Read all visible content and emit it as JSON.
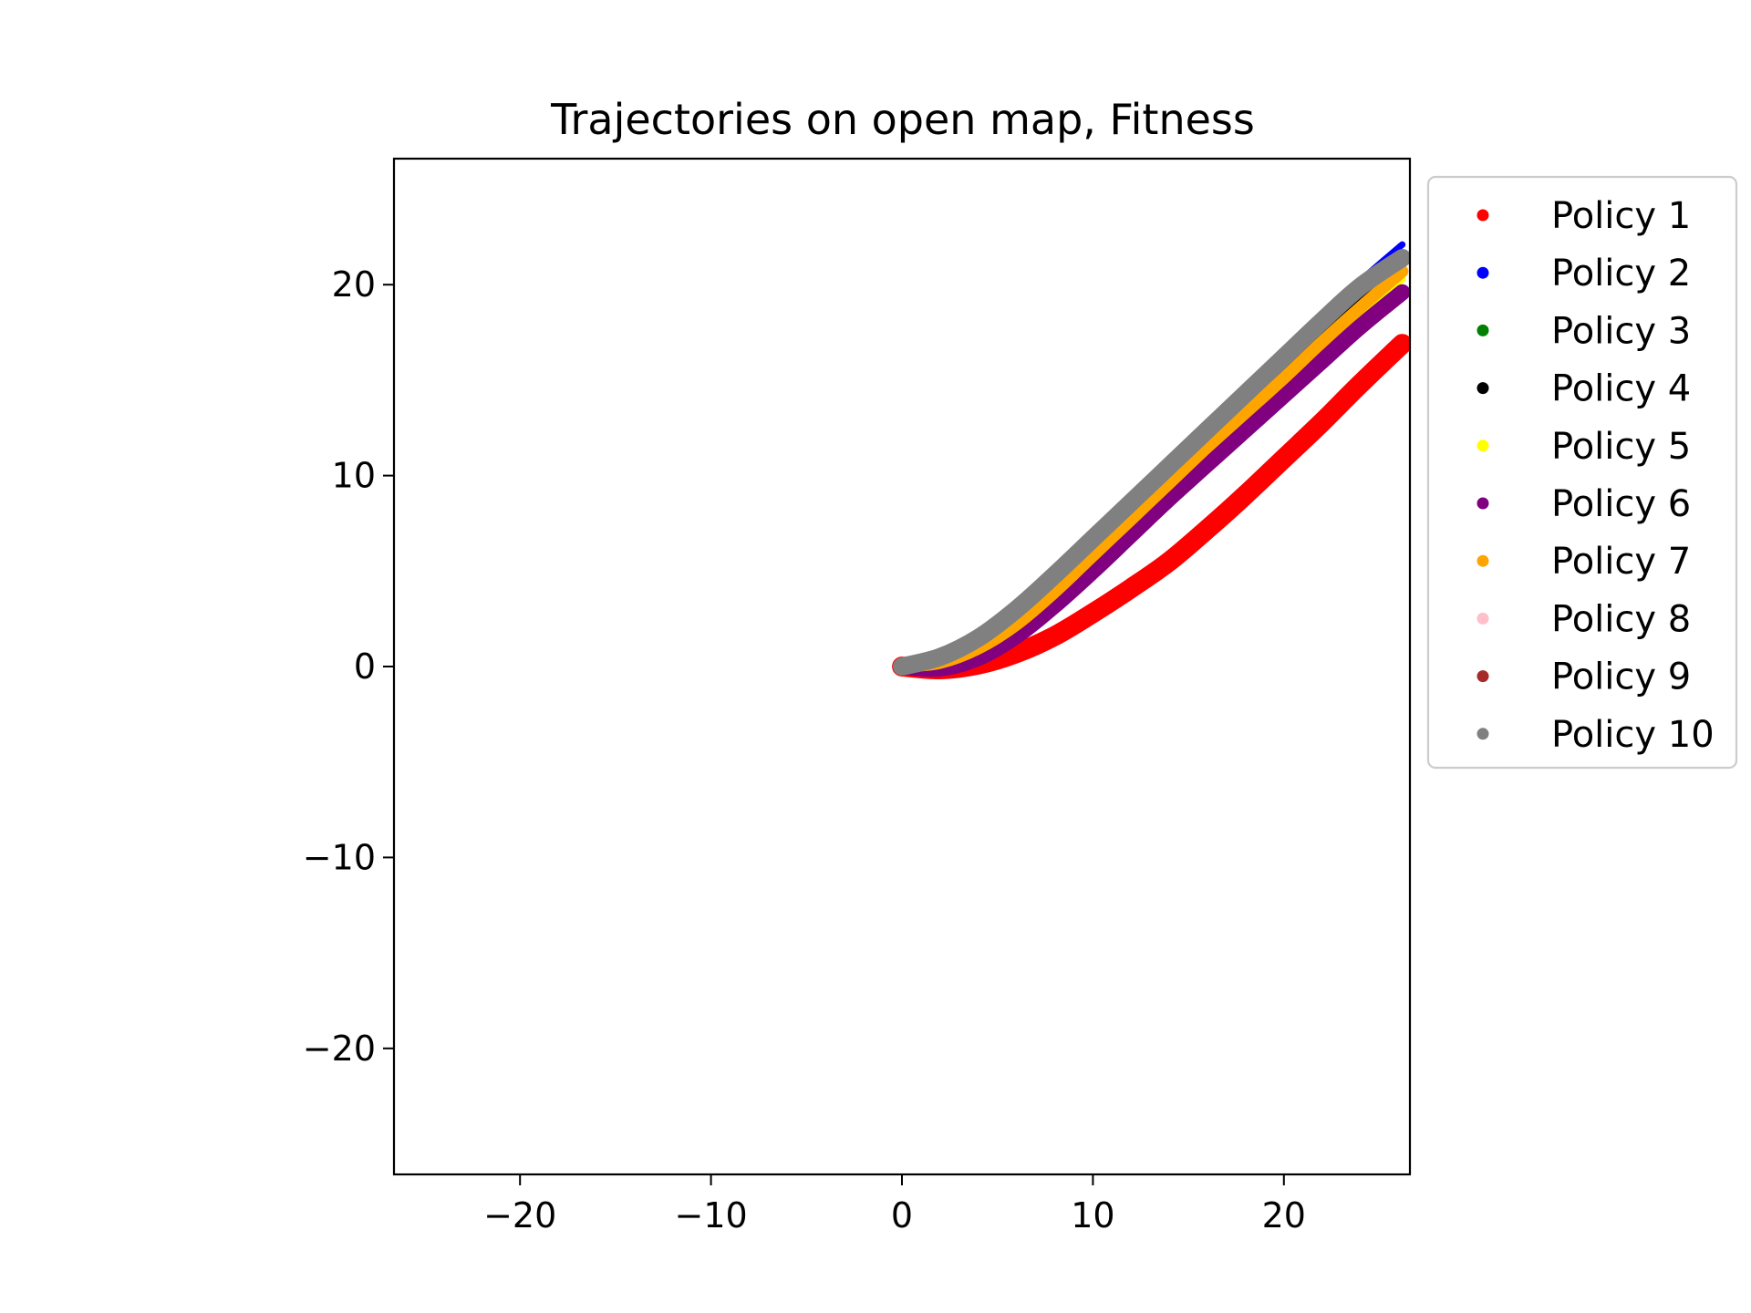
{
  "chart_data": {
    "type": "scatter",
    "title": "Trajectories on open map, Fitness",
    "xlabel": "",
    "ylabel": "",
    "xlim": [
      -26.6,
      26.6
    ],
    "ylim": [
      -26.6,
      26.6
    ],
    "xticks": [
      -20,
      -10,
      0,
      10,
      20
    ],
    "yticks": [
      -20,
      -10,
      0,
      10,
      20
    ],
    "xtick_labels": [
      "−20",
      "−10",
      "0",
      "10",
      "20"
    ],
    "ytick_labels": [
      "−20",
      "−10",
      "0",
      "10",
      "20"
    ],
    "grid": false,
    "legend_position": "outside-right-top",
    "series": [
      {
        "name": "Policy 1",
        "color": "#ff0000",
        "x": [
          0,
          2,
          4,
          6,
          8,
          10,
          12,
          14,
          16,
          18,
          20,
          22,
          24,
          26.2
        ],
        "y": [
          0,
          -0.15,
          0.1,
          0.7,
          1.6,
          2.8,
          4.1,
          5.5,
          7.2,
          9.0,
          10.9,
          12.8,
          14.8,
          16.9
        ],
        "band": 0.45
      },
      {
        "name": "Policy 2",
        "color": "#0000ff",
        "x": [
          0,
          2,
          4,
          6,
          8,
          10,
          12,
          14,
          16,
          18,
          20,
          22,
          24,
          26.2
        ],
        "y": [
          0,
          0.55,
          1.6,
          3.1,
          5.0,
          6.9,
          8.8,
          10.7,
          12.6,
          14.5,
          16.4,
          18.3,
          20.2,
          22.1
        ],
        "band": 0.1
      },
      {
        "name": "Policy 3",
        "color": "#008000",
        "x": [
          0,
          2,
          4,
          6,
          8,
          10,
          12,
          14,
          16,
          18,
          20,
          22,
          24,
          26.2
        ],
        "y": [
          0,
          0.35,
          1.2,
          2.6,
          4.4,
          6.3,
          8.2,
          10.1,
          12.0,
          13.9,
          15.8,
          17.7,
          19.5,
          21.4
        ],
        "band": 0.1
      },
      {
        "name": "Policy 4",
        "color": "#000000",
        "x": [
          0,
          2,
          4,
          6,
          8,
          10,
          12,
          14,
          16,
          18,
          20,
          22,
          24,
          26.2
        ],
        "y": [
          0,
          0.3,
          1.15,
          2.5,
          4.3,
          6.2,
          8.1,
          10.0,
          11.9,
          13.8,
          15.6,
          17.5,
          19.3,
          21.1
        ],
        "band": 0.15
      },
      {
        "name": "Policy 5",
        "color": "#ffff00",
        "x": [
          0,
          2,
          4,
          6,
          8,
          10,
          12,
          14,
          16,
          18,
          20,
          22,
          24,
          26.2
        ],
        "y": [
          0,
          0.15,
          0.8,
          2.0,
          3.7,
          5.6,
          7.5,
          9.4,
          11.3,
          13.1,
          14.9,
          16.7,
          18.5,
          20.3
        ],
        "band": 0.12
      },
      {
        "name": "Policy 6",
        "color": "#800080",
        "x": [
          0,
          2,
          4,
          6,
          8,
          10,
          12,
          14,
          16,
          18,
          20,
          22,
          24,
          26.2
        ],
        "y": [
          0,
          -0.1,
          0.45,
          1.6,
          3.2,
          5.0,
          6.9,
          8.8,
          10.6,
          12.4,
          14.2,
          16.0,
          17.8,
          19.6
        ],
        "band": 0.35
      },
      {
        "name": "Policy 7",
        "color": "#ffa500",
        "x": [
          0,
          2,
          4,
          6,
          8,
          10,
          12,
          14,
          16,
          18,
          20,
          22,
          24,
          26.2
        ],
        "y": [
          0,
          0.2,
          0.95,
          2.2,
          3.9,
          5.8,
          7.7,
          9.6,
          11.5,
          13.3,
          15.1,
          17.0,
          18.8,
          20.7
        ],
        "band": 0.25
      },
      {
        "name": "Policy 8",
        "color": "#ffc0cb",
        "x": [
          0,
          2,
          4,
          6,
          8,
          10,
          12,
          14,
          16,
          18,
          20,
          22,
          24,
          26.2
        ],
        "y": [
          0,
          0.4,
          1.3,
          2.7,
          4.5,
          6.4,
          8.3,
          10.2,
          12.1,
          14.0,
          15.9,
          17.8,
          19.6,
          21.5
        ],
        "band": 0.1
      },
      {
        "name": "Policy 9",
        "color": "#a52a2a",
        "x": [
          0,
          2,
          4,
          6,
          8,
          10,
          12,
          14,
          16,
          18,
          20,
          22,
          24,
          26.2
        ],
        "y": [
          0,
          0.45,
          1.4,
          2.8,
          4.6,
          6.5,
          8.4,
          10.3,
          12.2,
          14.1,
          16.0,
          17.9,
          19.7,
          21.6
        ],
        "band": 0.1
      },
      {
        "name": "Policy 10",
        "color": "#808080",
        "x": [
          0,
          2,
          4,
          6,
          8,
          10,
          12,
          14,
          16,
          18,
          20,
          22,
          24,
          26.2
        ],
        "y": [
          0,
          0.5,
          1.5,
          3.0,
          4.8,
          6.7,
          8.6,
          10.5,
          12.4,
          14.3,
          16.2,
          18.1,
          19.9,
          21.4
        ],
        "band": 0.4
      }
    ]
  }
}
